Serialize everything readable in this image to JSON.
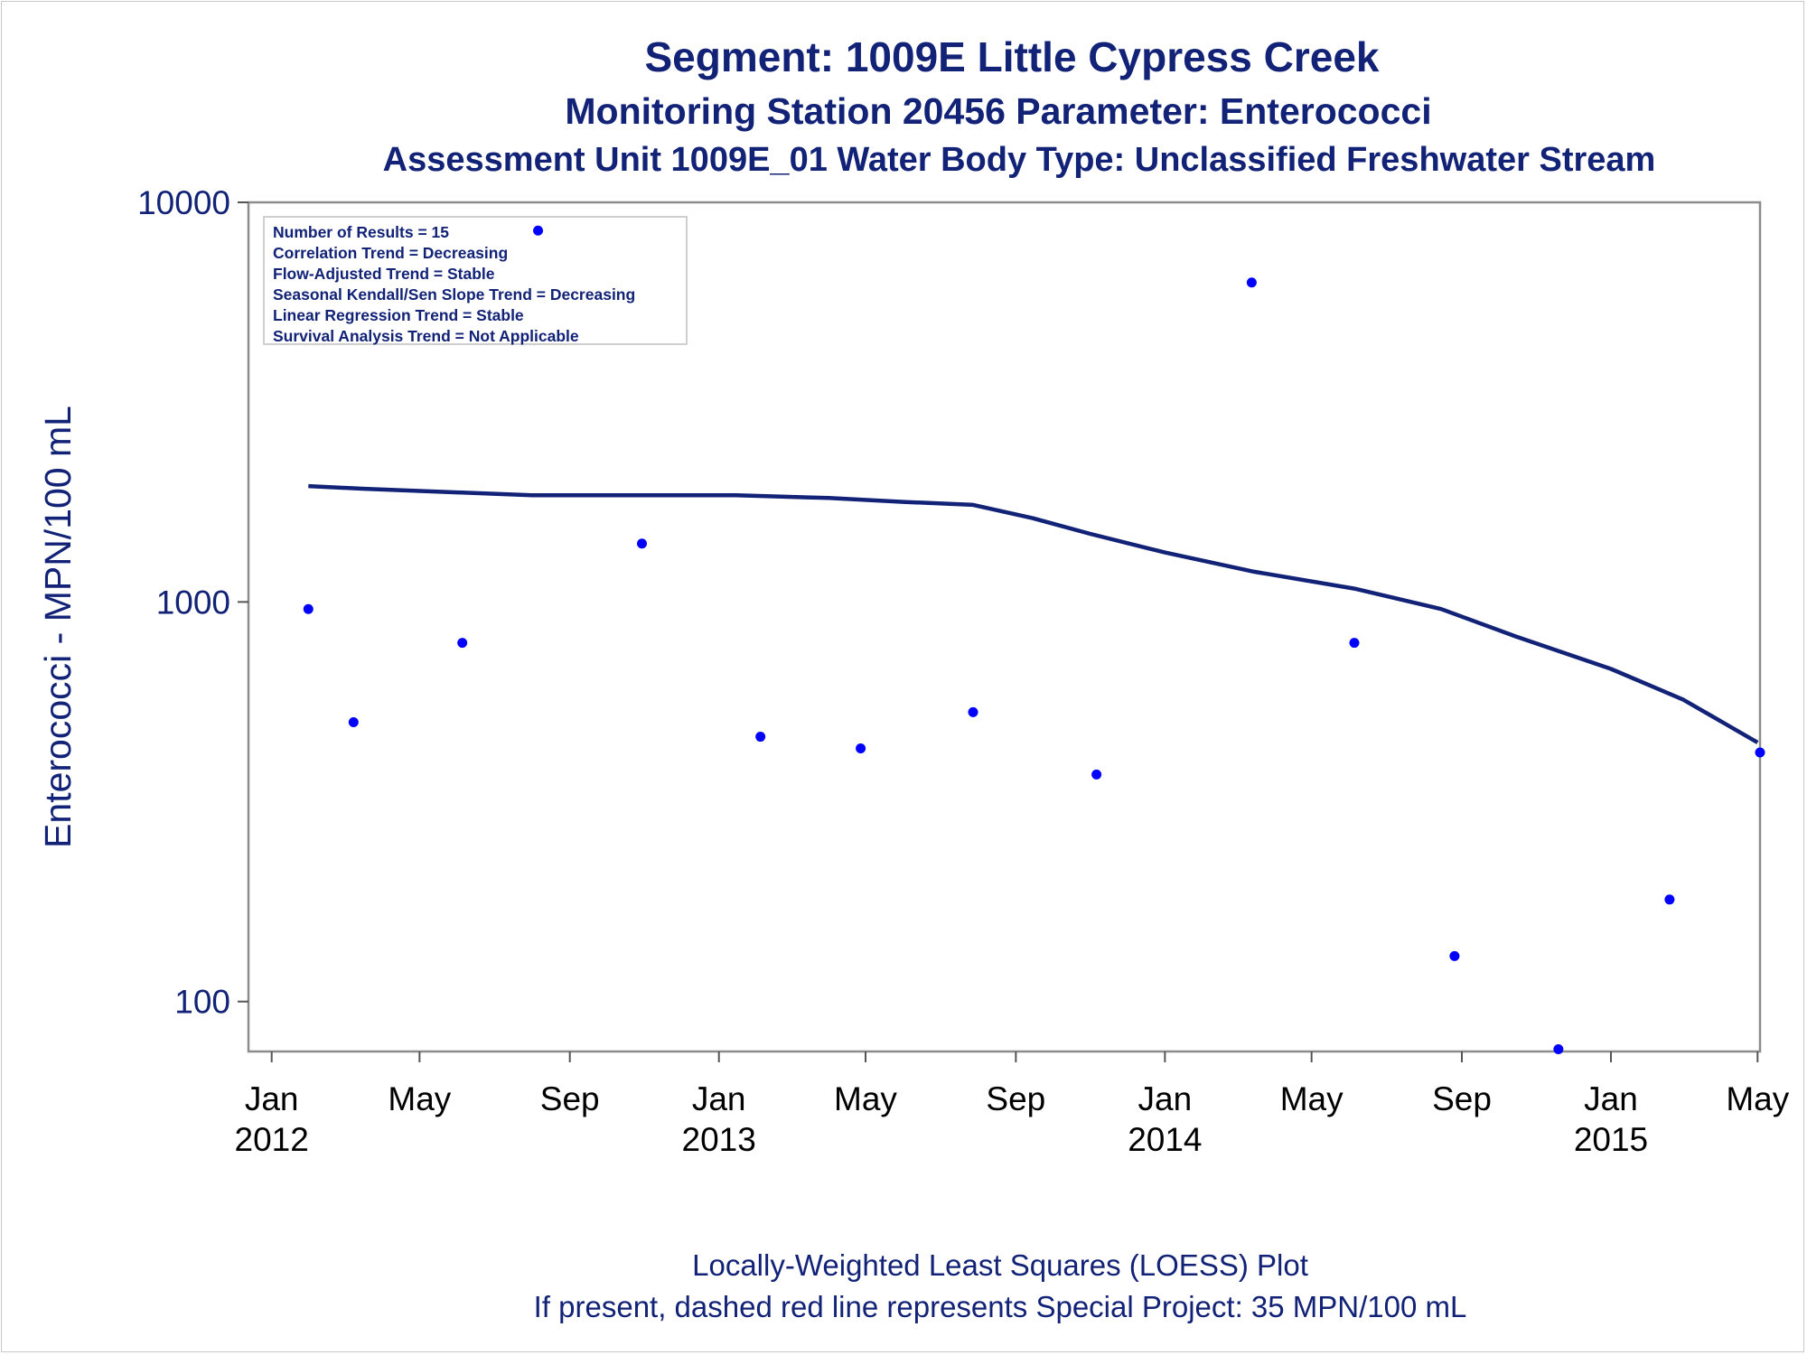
{
  "chart_data": {
    "type": "scatter",
    "title": "Segment: 1009E  Little Cypress Creek",
    "subtitle": "Monitoring Station 20456 Parameter: Enterococci",
    "subtitle2": "Assessment Unit 1009E_01   Water Body Type: Unclassified Freshwater Stream",
    "xlabel": "",
    "ylabel": "Enterococci - MPN/100 mL",
    "y_scale": "log",
    "ylim": [
      75,
      10000
    ],
    "xlim": [
      "2011-12-13",
      "2015-05-03"
    ],
    "y_ticks": [
      {
        "value": 100,
        "label": "100"
      },
      {
        "value": 1000,
        "label": "1000"
      },
      {
        "value": 10000,
        "label": "10000"
      }
    ],
    "x_ticks": [
      {
        "date": "2012-01-01",
        "line1": "Jan",
        "line2": "2012"
      },
      {
        "date": "2012-05-01",
        "line1": "May",
        "line2": ""
      },
      {
        "date": "2012-09-01",
        "line1": "Sep",
        "line2": ""
      },
      {
        "date": "2013-01-01",
        "line1": "Jan",
        "line2": "2013"
      },
      {
        "date": "2013-05-01",
        "line1": "May",
        "line2": ""
      },
      {
        "date": "2013-09-01",
        "line1": "Sep",
        "line2": ""
      },
      {
        "date": "2014-01-01",
        "line1": "Jan",
        "line2": "2014"
      },
      {
        "date": "2014-05-01",
        "line1": "May",
        "line2": ""
      },
      {
        "date": "2014-09-01",
        "line1": "Sep",
        "line2": ""
      },
      {
        "date": "2015-01-01",
        "line1": "Jan",
        "line2": "2015"
      },
      {
        "date": "2015-05-01",
        "line1": "May",
        "line2": ""
      }
    ],
    "series": [
      {
        "type": "scatter",
        "color": "#0000ff",
        "points": [
          {
            "x": "2012-01-31",
            "y": 960
          },
          {
            "x": "2012-03-08",
            "y": 500
          },
          {
            "x": "2012-06-05",
            "y": 790
          },
          {
            "x": "2012-08-06",
            "y": 8500
          },
          {
            "x": "2012-10-30",
            "y": 1400
          },
          {
            "x": "2013-02-04",
            "y": 460
          },
          {
            "x": "2013-04-27",
            "y": 430
          },
          {
            "x": "2013-07-28",
            "y": 530
          },
          {
            "x": "2013-11-06",
            "y": 370
          },
          {
            "x": "2014-03-13",
            "y": 6300
          },
          {
            "x": "2014-06-05",
            "y": 790
          },
          {
            "x": "2014-08-26",
            "y": 130
          },
          {
            "x": "2014-11-19",
            "y": 76
          },
          {
            "x": "2015-02-18",
            "y": 180
          },
          {
            "x": "2015-05-03",
            "y": 420
          }
        ]
      },
      {
        "type": "line",
        "color": "#112277",
        "points": [
          {
            "x": "2012-01-31",
            "y": 1950
          },
          {
            "x": "2012-03-15",
            "y": 1920
          },
          {
            "x": "2012-06-01",
            "y": 1880
          },
          {
            "x": "2012-08-01",
            "y": 1850
          },
          {
            "x": "2012-10-01",
            "y": 1850
          },
          {
            "x": "2013-01-15",
            "y": 1850
          },
          {
            "x": "2013-04-01",
            "y": 1820
          },
          {
            "x": "2013-06-01",
            "y": 1780
          },
          {
            "x": "2013-07-28",
            "y": 1750
          },
          {
            "x": "2013-09-15",
            "y": 1620
          },
          {
            "x": "2013-11-01",
            "y": 1480
          },
          {
            "x": "2014-01-01",
            "y": 1330
          },
          {
            "x": "2014-03-15",
            "y": 1190
          },
          {
            "x": "2014-06-05",
            "y": 1080
          },
          {
            "x": "2014-08-15",
            "y": 960
          },
          {
            "x": "2014-10-15",
            "y": 820
          },
          {
            "x": "2015-01-01",
            "y": 680
          },
          {
            "x": "2015-03-01",
            "y": 570
          },
          {
            "x": "2015-05-01",
            "y": 445
          }
        ]
      }
    ],
    "inset_lines": [
      "Number of Results = 15",
      "Correlation Trend = Decreasing",
      "Flow-Adjusted Trend = Stable",
      "Seasonal Kendall/Sen Slope Trend = Decreasing",
      "Linear Regression Trend = Stable",
      "Survival Analysis Trend = Not Applicable"
    ],
    "footnotes": [
      "Locally-Weighted Least Squares (LOESS) Plot",
      "If present, dashed red line represents Special Project: 35 MPN/100 mL"
    ],
    "grid": false,
    "legend": "none"
  }
}
